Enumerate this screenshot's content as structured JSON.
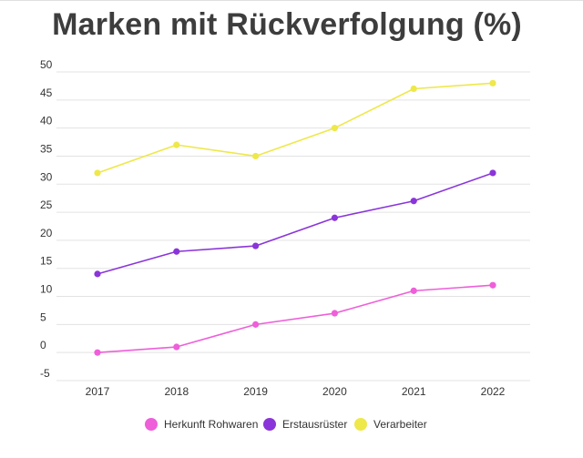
{
  "chart_data": {
    "type": "line",
    "title": "Marken mit Rückverfolgung (%)",
    "xlabel": "",
    "ylabel": "",
    "categories": [
      "2017",
      "2018",
      "2019",
      "2020",
      "2021",
      "2022"
    ],
    "ylim": [
      -5,
      50
    ],
    "yticks": [
      -5,
      0,
      5,
      10,
      15,
      20,
      25,
      30,
      35,
      40,
      45,
      50
    ],
    "grid": true,
    "legend_position": "bottom",
    "series": [
      {
        "name": "Herkunft Rohwaren",
        "color": "#ee5fd9",
        "values": [
          0,
          1,
          5,
          7,
          11,
          12
        ]
      },
      {
        "name": "Erstausrüster",
        "color": "#8a35d9",
        "values": [
          14,
          18,
          19,
          24,
          27,
          32
        ]
      },
      {
        "name": "Verarbeiter",
        "color": "#eee84a",
        "values": [
          32,
          37,
          35,
          40,
          47,
          48
        ]
      }
    ]
  }
}
